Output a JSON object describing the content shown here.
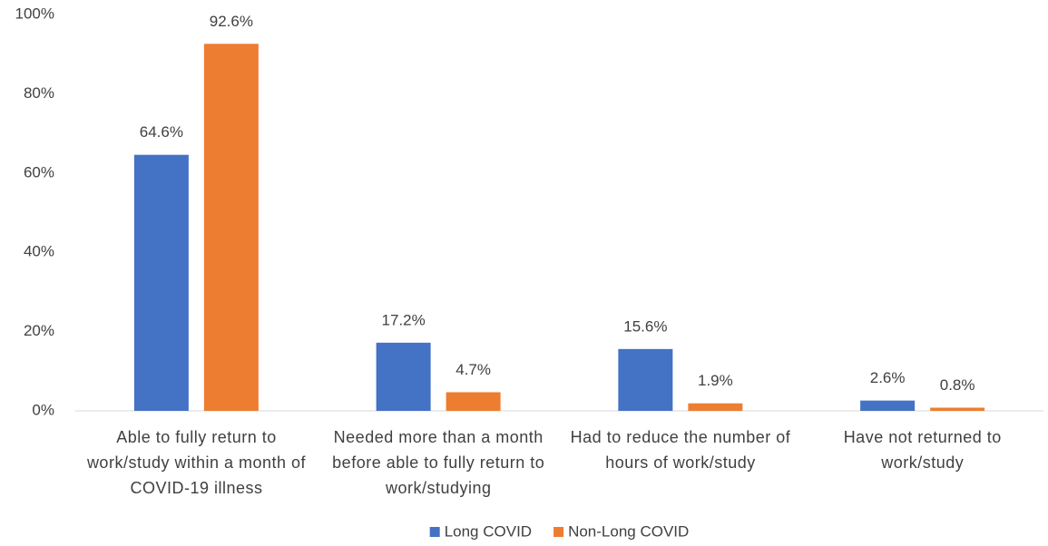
{
  "chart_data": {
    "type": "bar",
    "categories": [
      "Able to fully return to work/study within a month of COVID-19 illness",
      "Needed more than a month before able to fully return to work/studying",
      "Had to reduce the number of hours of work/study",
      "Have not returned to work/study"
    ],
    "series": [
      {
        "name": "Long COVID",
        "color": "#4472c4",
        "values": [
          64.6,
          17.2,
          15.6,
          2.6
        ],
        "value_labels": [
          "64.6%",
          "17.2%",
          "15.6%",
          "2.6%"
        ]
      },
      {
        "name": "Non-Long COVID",
        "color": "#ed7d31",
        "values": [
          92.6,
          4.7,
          1.9,
          0.8
        ],
        "value_labels": [
          "92.6%",
          "4.7%",
          "1.9%",
          "0.8%"
        ]
      }
    ],
    "ylim": [
      0,
      100
    ],
    "yticks": [
      {
        "value": 0,
        "label": "0%"
      },
      {
        "value": 20,
        "label": "20%"
      },
      {
        "value": 40,
        "label": "40%"
      },
      {
        "value": 60,
        "label": "60%"
      },
      {
        "value": 80,
        "label": "80%"
      },
      {
        "value": 100,
        "label": "100%"
      }
    ],
    "grid": false,
    "legend": "bottom"
  }
}
